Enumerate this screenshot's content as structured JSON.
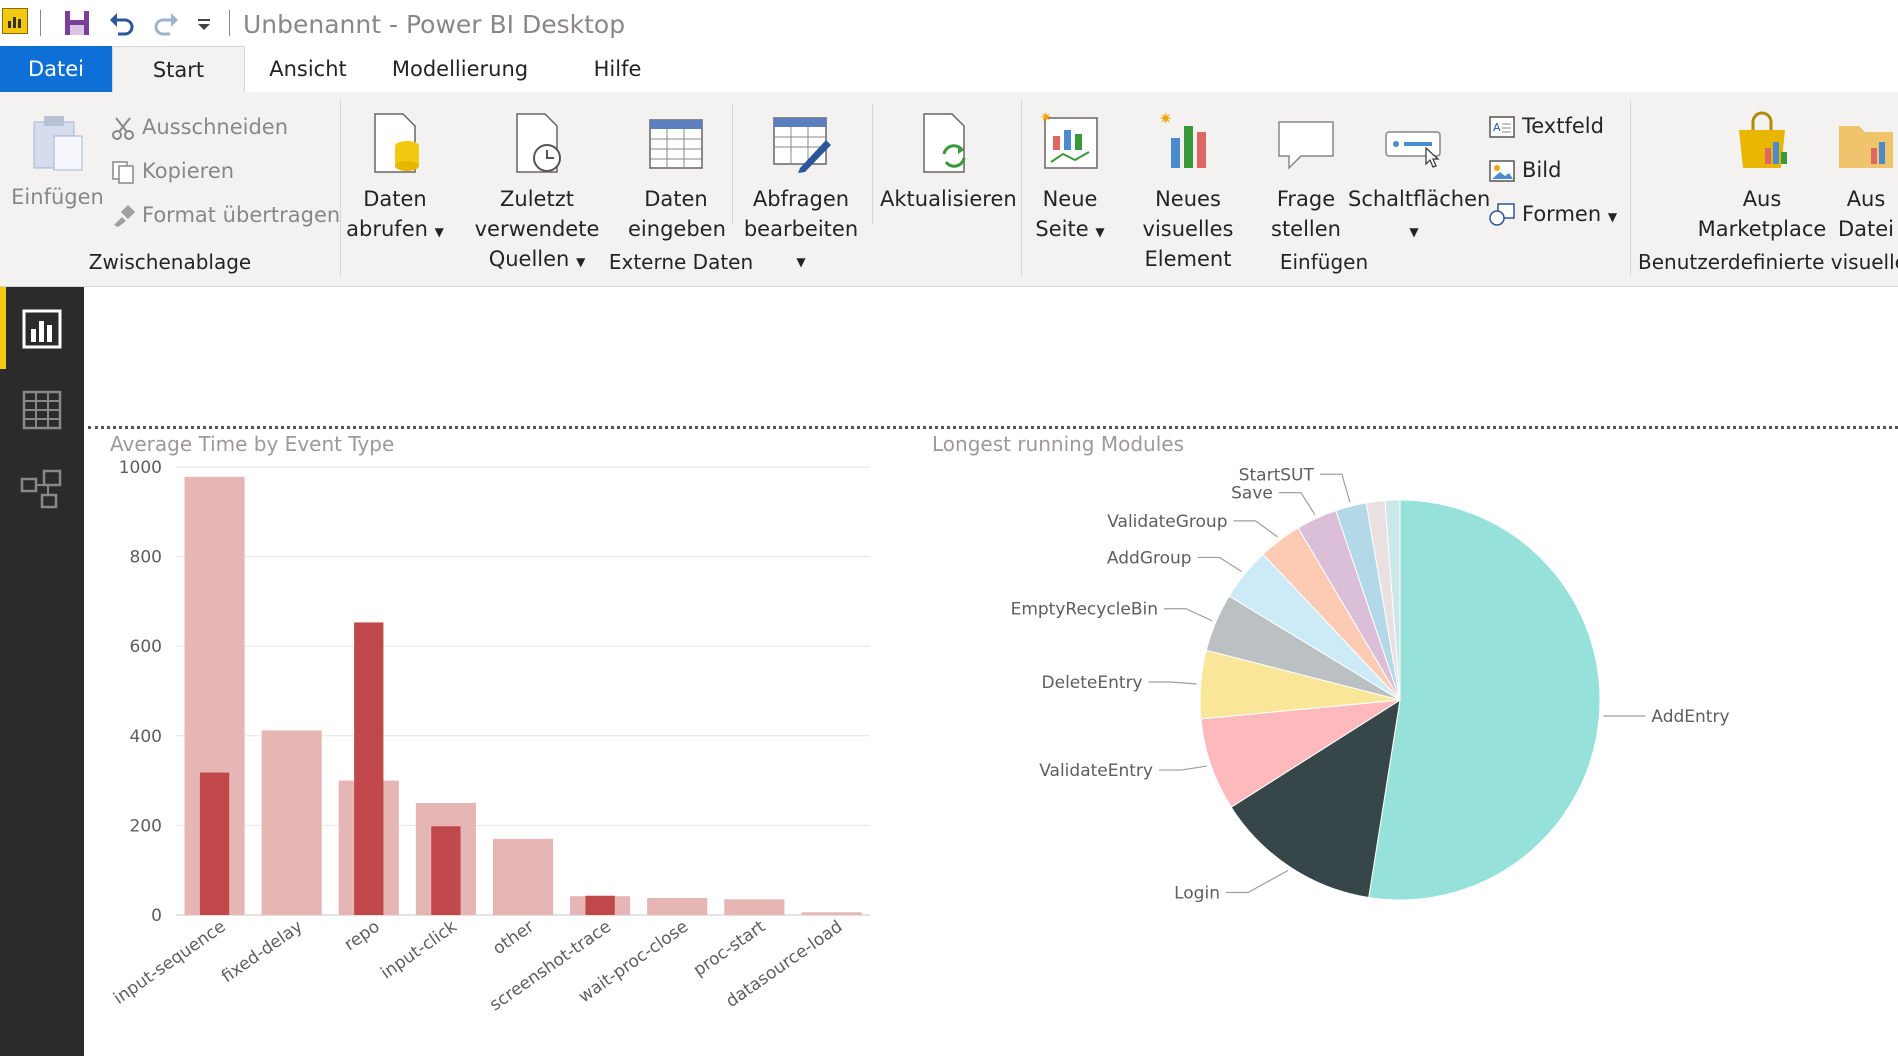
{
  "window": {
    "title": "Unbenannt - Power BI Desktop"
  },
  "tabs": {
    "file": "Datei",
    "start": "Start",
    "view": "Ansicht",
    "modeling": "Modellierung",
    "help": "Hilfe"
  },
  "ribbon": {
    "clipboard": {
      "paste": "Einfügen",
      "cut": "Ausschneiden",
      "copy": "Kopieren",
      "format_painter": "Format übertragen",
      "group": "Zwischenablage"
    },
    "external": {
      "get_data_1": "Daten",
      "get_data_2": "abrufen",
      "recent_1": "Zuletzt verwendete",
      "recent_2": "Quellen",
      "enter_1": "Daten",
      "enter_2": "eingeben",
      "edit_1": "Abfragen",
      "edit_2": "bearbeiten",
      "refresh": "Aktualisieren",
      "group": "Externe Daten"
    },
    "insert": {
      "new_page_1": "Neue",
      "new_page_2": "Seite",
      "new_visual_1": "Neues visuelles",
      "new_visual_2": "Element",
      "ask_1": "Frage",
      "ask_2": "stellen",
      "buttons": "Schaltflächen",
      "textbox": "Textfeld",
      "image": "Bild",
      "shapes": "Formen",
      "group": "Einfügen"
    },
    "custom": {
      "marketplace_1": "Aus",
      "marketplace_2": "Marketplace",
      "file_1": "Aus",
      "file_2": "Datei",
      "group": "Benutzerdefinierte visuelle E"
    }
  },
  "colors": {
    "accent": "#f2c811",
    "file_tab": "#0e6fd6",
    "bar_light": "#e6b6b5",
    "bar_dark": "#c0474a"
  },
  "chart_data": [
    {
      "type": "bar",
      "title": "Average Time by Event Type",
      "categories": [
        "input-sequence",
        "fixed-delay",
        "repo",
        "input-click",
        "other",
        "screenshot-trace",
        "wait-proc-close",
        "proc-start",
        "datasource-load"
      ],
      "series": [
        {
          "values": [
            978,
            412,
            300,
            250,
            170,
            42,
            38,
            35,
            6
          ]
        },
        {
          "values": [
            318,
            null,
            653,
            198,
            null,
            43,
            null,
            null,
            null
          ]
        }
      ],
      "yticks": [
        0,
        200,
        400,
        600,
        800,
        1000
      ],
      "ylim": [
        0,
        1000
      ],
      "grid": true
    },
    {
      "type": "pie",
      "title": "Longest running Modules",
      "labels": [
        "AddEntry",
        "Login",
        "ValidateEntry",
        "DeleteEntry",
        "EmptyRecycleBin",
        "AddGroup",
        "ValidateGroup",
        "Save",
        "StartSUT",
        "",
        ""
      ],
      "values": [
        52.5,
        13.5,
        7.5,
        5.5,
        4.7,
        4.3,
        3.5,
        3.3,
        2.5,
        1.5,
        1.2
      ],
      "colors": [
        "#96e2da",
        "#374649",
        "#fdb9bc",
        "#f9e699",
        "#bbc1c2",
        "#cdebf6",
        "#fdcbb4",
        "#dbbfd9",
        "#b3d8e8",
        "#eae0e2",
        "#cbe7ea"
      ]
    }
  ]
}
